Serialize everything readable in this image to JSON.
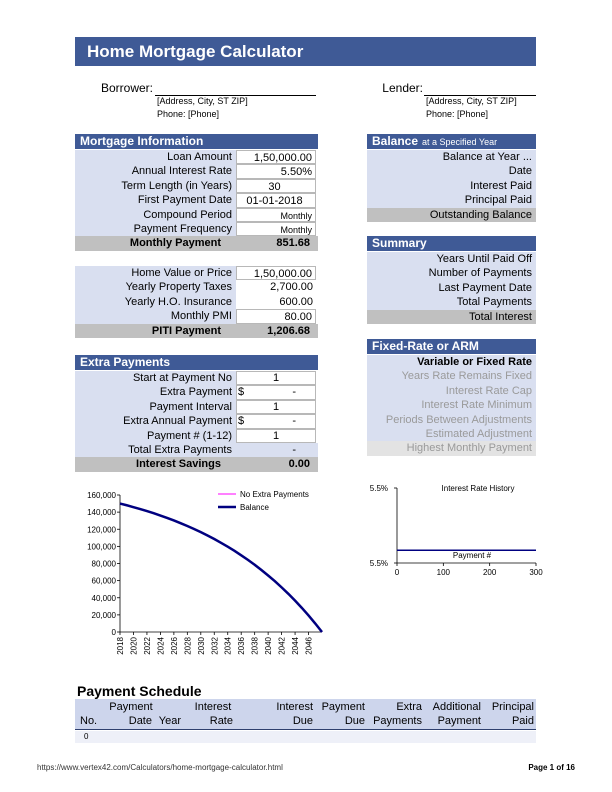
{
  "header": {
    "title": "Home Mortgage Calculator"
  },
  "parties": {
    "borrower": {
      "label": "Borrower:",
      "address": "[Address, City, ST ZIP]",
      "phone": "Phone: [Phone]"
    },
    "lender": {
      "label": "Lender:",
      "address": "[Address, City, ST ZIP]",
      "phone": "Phone: [Phone]"
    }
  },
  "mortgage": {
    "title": "Mortgage Information",
    "rows": [
      {
        "label": "Loan Amount",
        "value": "1,50,000.00"
      },
      {
        "label": "Annual Interest Rate",
        "value": "5.50%"
      },
      {
        "label": "Term Length (in Years)",
        "value": "30"
      },
      {
        "label": "First Payment Date",
        "value": "01-01-2018"
      },
      {
        "label": "Compound Period",
        "value": "Monthly"
      },
      {
        "label": "Payment Frequency",
        "value": "Monthly"
      }
    ],
    "total": {
      "label": "Monthly Payment",
      "value": "851.68"
    }
  },
  "piti": {
    "rows": [
      {
        "label": "Home Value or Price",
        "value": "1,50,000.00"
      },
      {
        "label": "Yearly Property Taxes",
        "value": "2,700.00"
      },
      {
        "label": "Yearly H.O. Insurance",
        "value": "600.00"
      },
      {
        "label": "Monthly PMI",
        "value": "80.00"
      }
    ],
    "total": {
      "label": "PITI Payment",
      "value": "1,206.68"
    }
  },
  "extra": {
    "title": "Extra Payments",
    "rows": [
      {
        "label": "Start at Payment No",
        "value": "1"
      },
      {
        "label": "Extra Payment",
        "currency": "$",
        "value": "-"
      },
      {
        "label": "Payment Interval",
        "value": "1"
      },
      {
        "label": "Extra Annual Payment",
        "currency": "$",
        "value": "-"
      },
      {
        "label": "Payment # (1-12)",
        "value": "1"
      },
      {
        "label": "Total Extra Payments",
        "value": "-"
      }
    ],
    "total": {
      "label": "Interest Savings",
      "value": "0.00"
    }
  },
  "balance": {
    "title": "Balance",
    "subtitle": "at a Specified Year",
    "rows": [
      "Balance at Year ...",
      "Date",
      "Interest Paid",
      "Principal Paid"
    ],
    "total": "Outstanding Balance"
  },
  "summary": {
    "title": "Summary",
    "rows": [
      "Years Until Paid Off",
      "Number of Payments",
      "Last Payment Date",
      "Total Payments"
    ],
    "total": "Total Interest"
  },
  "arm": {
    "title": "Fixed-Rate or ARM",
    "rows": [
      "Variable or Fixed Rate",
      "Years Rate Remains Fixed",
      "Interest Rate Cap",
      "Interest Rate Minimum",
      "Periods Between Adjustments",
      "Estimated Adjustment"
    ],
    "last": "Highest Monthly Payment"
  },
  "chart_data": [
    {
      "type": "line",
      "x": [
        2018,
        2019,
        2020,
        2021,
        2022,
        2023,
        2024,
        2025,
        2026,
        2027,
        2028,
        2029,
        2030,
        2031,
        2032,
        2033,
        2034,
        2035,
        2036,
        2037,
        2038,
        2039,
        2040,
        2041,
        2042,
        2043,
        2044,
        2045,
        2046,
        2047,
        2048
      ],
      "xlim": [
        2018,
        2048
      ],
      "xticks": [
        2018,
        2020,
        2022,
        2024,
        2026,
        2028,
        2030,
        2032,
        2034,
        2036,
        2038,
        2040,
        2042,
        2044,
        2046
      ],
      "ylim": [
        0,
        160000
      ],
      "yticks": [
        0,
        {
          "value": 20000,
          "label": "20,000"
        },
        {
          "value": 40000,
          "label": "40,000"
        },
        {
          "value": 60000,
          "label": "60,000"
        },
        {
          "value": 80000,
          "label": "80,000"
        },
        {
          "value": 100000,
          "label": "100,000"
        },
        {
          "value": 120000,
          "label": "120,000"
        },
        {
          "value": 140000,
          "label": "140,000"
        },
        {
          "value": 160000,
          "label": "160,000"
        }
      ],
      "legend": "top-right",
      "series": [
        {
          "name": "No Extra Payments",
          "color": "#ff00ff",
          "values": [
            150000,
            148000,
            145800,
            143600,
            141200,
            138700,
            136000,
            133200,
            130300,
            127100,
            123800,
            120300,
            116600,
            112700,
            108600,
            104200,
            99600,
            94800,
            89600,
            84200,
            78500,
            72400,
            66000,
            59300,
            52100,
            44600,
            36600,
            28200,
            19300,
            9900,
            0
          ]
        },
        {
          "name": "Balance",
          "color": "#000080",
          "values": [
            150000,
            148000,
            145800,
            143600,
            141200,
            138700,
            136000,
            133200,
            130300,
            127100,
            123800,
            120300,
            116600,
            112700,
            108600,
            104200,
            99600,
            94800,
            89600,
            84200,
            78500,
            72400,
            66000,
            59300,
            52100,
            44600,
            36600,
            28200,
            19300,
            9900,
            0
          ]
        }
      ]
    },
    {
      "type": "line",
      "title": "Interest Rate History",
      "xlabel": "Payment #",
      "x": [
        0,
        300
      ],
      "values": [
        5.5,
        5.5
      ],
      "color": "#000080",
      "xlim": [
        0,
        300
      ],
      "xticks": [
        0,
        100,
        200,
        300
      ],
      "ylim": [
        5.49,
        5.549
      ],
      "yticks": [
        {
          "value": 5.49,
          "label": "5.5%"
        },
        {
          "value": 5.549,
          "label": "5.5%"
        }
      ]
    }
  ],
  "schedule": {
    "title": "Payment Schedule",
    "header_top": [
      "Payment",
      "Interest",
      "Interest",
      "Payment",
      "Extra",
      "Additional",
      "Principal"
    ],
    "header_bottom": [
      "No.",
      "Date",
      "Year",
      "Rate",
      "Due",
      "Due",
      "Payments",
      "Payment",
      "Paid"
    ],
    "rows": [
      [
        "0"
      ]
    ]
  },
  "footer": {
    "url": "https://www.vertex42.com/Calculators/home-mortgage-calculator.html",
    "page": "Page 1 of 16"
  }
}
